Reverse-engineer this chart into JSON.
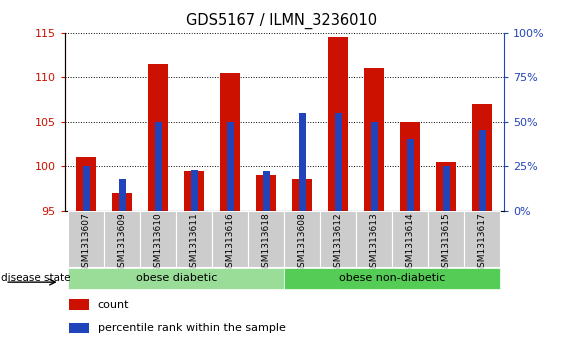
{
  "title": "GDS5167 / ILMN_3236010",
  "samples": [
    "GSM1313607",
    "GSM1313609",
    "GSM1313610",
    "GSM1313611",
    "GSM1313616",
    "GSM1313618",
    "GSM1313608",
    "GSM1313612",
    "GSM1313613",
    "GSM1313614",
    "GSM1313615",
    "GSM1313617"
  ],
  "count_values": [
    101.0,
    97.0,
    111.5,
    99.5,
    110.5,
    99.0,
    98.5,
    114.5,
    111.0,
    105.0,
    100.5,
    107.0
  ],
  "percentile_values": [
    25,
    18,
    50,
    23,
    50,
    22,
    55,
    55,
    50,
    40,
    25,
    45
  ],
  "ylim_left": [
    95,
    115
  ],
  "ylim_right": [
    0,
    100
  ],
  "yticks_left": [
    95,
    100,
    105,
    110,
    115
  ],
  "yticks_right": [
    0,
    25,
    50,
    75,
    100
  ],
  "bar_color_red": "#cc1100",
  "bar_color_blue": "#2244bb",
  "bg_color_ticks": "#cccccc",
  "disease_groups": [
    {
      "label": "obese diabetic",
      "start": 0,
      "end": 6,
      "color": "#99dd99"
    },
    {
      "label": "obese non-diabetic",
      "start": 6,
      "end": 12,
      "color": "#55cc55"
    }
  ],
  "disease_state_label": "disease state",
  "legend_items": [
    {
      "label": "count",
      "color": "#cc1100"
    },
    {
      "label": "percentile rank within the sample",
      "color": "#2244bb"
    }
  ],
  "left_axis_color": "#cc1100",
  "right_axis_color": "#2244bb"
}
